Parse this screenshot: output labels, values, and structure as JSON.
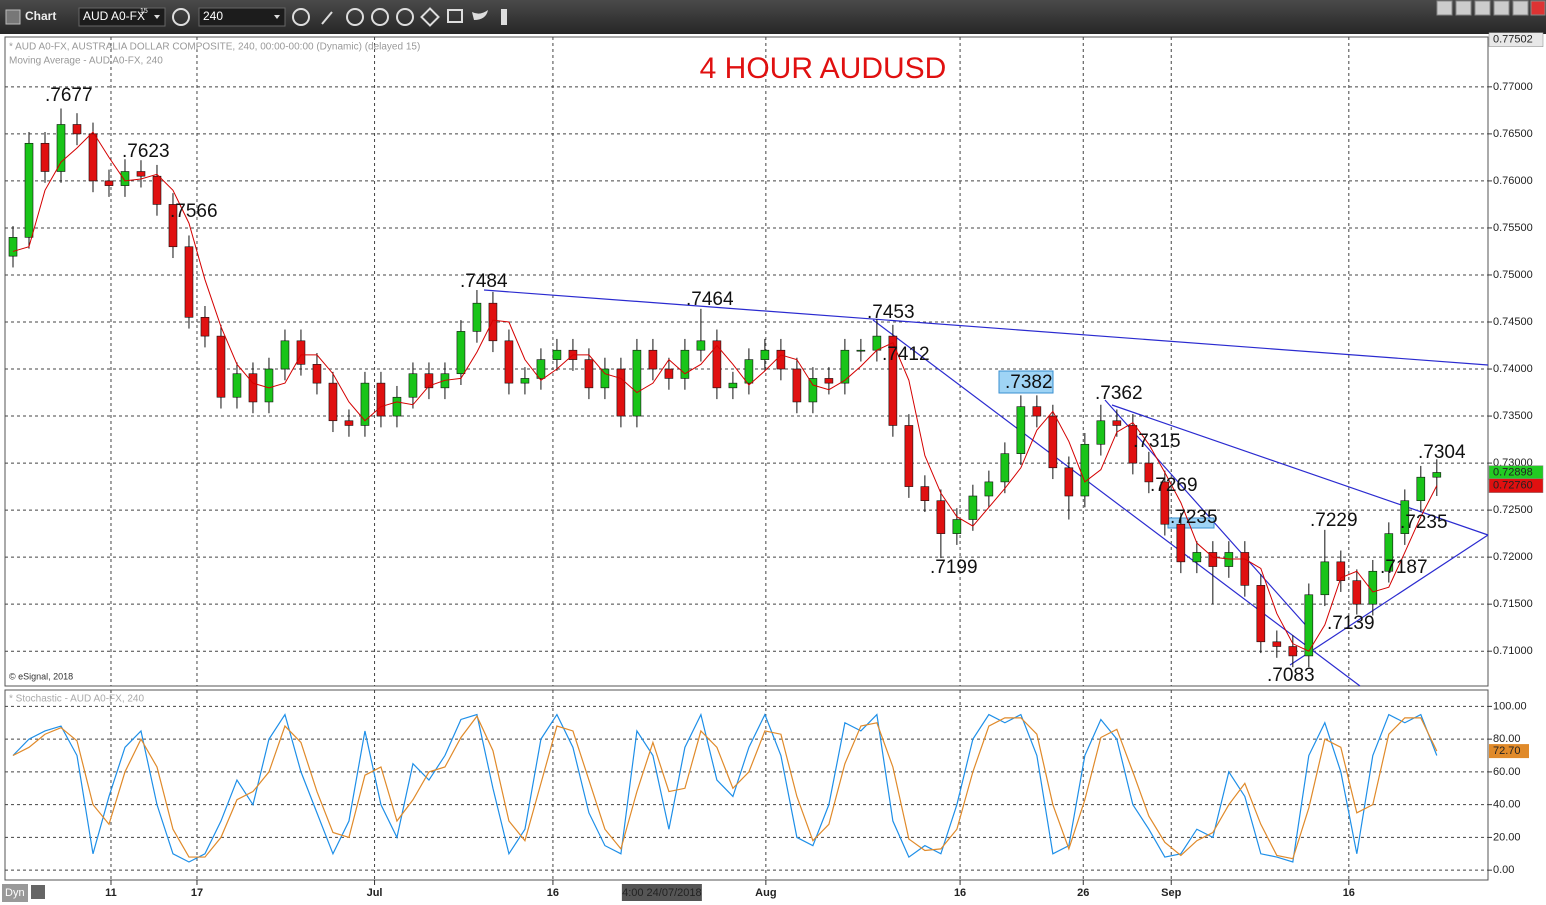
{
  "toolbar": {
    "title": "Chart",
    "symbol": "AUD A0-FX",
    "symbol_sup": "15",
    "interval": "240",
    "mode": "Dyn"
  },
  "chart_data": [
    {
      "type": "candlestick",
      "title": "4 HOUR AUDUSD",
      "subtitle": "* AUD A0-FX, AUSTRALIA DOLLAR COMPOSITE, 240, 00:00-00:00 (Dynamic) (delayed 15)",
      "indicator_label": "Moving Average - AUD A0-FX, 240",
      "source": "© eSignal, 2018",
      "up_color": "#19c419",
      "down_color": "#e01010",
      "open": [
        0.752,
        0.754,
        0.764,
        0.761,
        0.766,
        0.765,
        0.76,
        0.7595,
        0.761,
        0.7605,
        0.7575,
        0.753,
        0.7455,
        0.7435,
        0.737,
        0.7395,
        0.7365,
        0.74,
        0.743,
        0.7405,
        0.7385,
        0.7345,
        0.734,
        0.7385,
        0.735,
        0.737,
        0.7395,
        0.738,
        0.7395,
        0.744,
        0.747,
        0.743,
        0.7385,
        0.739,
        0.741,
        0.742,
        0.741,
        0.738,
        0.74,
        0.735,
        0.742,
        0.74,
        0.739,
        0.742,
        0.743,
        0.738,
        0.7385,
        0.741,
        0.742,
        0.74,
        0.7365,
        0.739,
        0.7385,
        0.742,
        0.742,
        0.7435,
        0.734,
        0.7275,
        0.726,
        0.7225,
        0.724,
        0.7265,
        0.728,
        0.731,
        0.736,
        0.735,
        0.7295,
        0.7265,
        0.732,
        0.7345,
        0.734,
        0.73,
        0.728,
        0.7235,
        0.7195,
        0.7205,
        0.719,
        0.7205,
        0.717,
        0.711,
        0.7105,
        0.7095,
        0.716,
        0.7195,
        0.7175,
        0.715,
        0.7185,
        0.7225,
        0.726,
        0.7285
      ],
      "high": [
        0.7552,
        0.7652,
        0.7652,
        0.7677,
        0.7672,
        0.7662,
        0.7612,
        0.7623,
        0.7622,
        0.7617,
        0.7587,
        0.7542,
        0.7467,
        0.7447,
        0.7407,
        0.7407,
        0.7412,
        0.7442,
        0.7442,
        0.7417,
        0.7397,
        0.7357,
        0.7397,
        0.7397,
        0.7382,
        0.7407,
        0.7407,
        0.7407,
        0.7452,
        0.7484,
        0.7482,
        0.7442,
        0.7402,
        0.7422,
        0.7432,
        0.7432,
        0.7422,
        0.7412,
        0.7412,
        0.7432,
        0.7432,
        0.7412,
        0.7432,
        0.7464,
        0.7442,
        0.7397,
        0.7422,
        0.7432,
        0.7432,
        0.7412,
        0.7402,
        0.7402,
        0.7432,
        0.7432,
        0.7453,
        0.7447,
        0.7352,
        0.7287,
        0.7272,
        0.7252,
        0.7277,
        0.7292,
        0.7322,
        0.7372,
        0.7372,
        0.7362,
        0.7307,
        0.7332,
        0.7362,
        0.7357,
        0.7352,
        0.7312,
        0.7292,
        0.7247,
        0.7217,
        0.7217,
        0.7217,
        0.7217,
        0.7182,
        0.7122,
        0.7117,
        0.7172,
        0.7229,
        0.7207,
        0.7187,
        0.7197,
        0.7237,
        0.7272,
        0.7297,
        0.7304
      ],
      "low": [
        0.7508,
        0.7528,
        0.7598,
        0.7598,
        0.7638,
        0.7588,
        0.7583,
        0.7583,
        0.7593,
        0.7563,
        0.7518,
        0.7443,
        0.7423,
        0.7358,
        0.7358,
        0.7353,
        0.7353,
        0.7388,
        0.7393,
        0.7373,
        0.7333,
        0.7328,
        0.7328,
        0.7338,
        0.7338,
        0.7358,
        0.7368,
        0.7368,
        0.7383,
        0.7428,
        0.7418,
        0.7373,
        0.7373,
        0.7378,
        0.7398,
        0.7398,
        0.7368,
        0.7368,
        0.7338,
        0.7338,
        0.7388,
        0.7378,
        0.7378,
        0.7408,
        0.7368,
        0.7368,
        0.7373,
        0.7398,
        0.7388,
        0.7353,
        0.7353,
        0.7373,
        0.7373,
        0.7408,
        0.7408,
        0.7328,
        0.7263,
        0.7248,
        0.7199,
        0.7213,
        0.7228,
        0.7253,
        0.7268,
        0.7298,
        0.7338,
        0.7283,
        0.724,
        0.7253,
        0.7308,
        0.7328,
        0.7288,
        0.7268,
        0.7223,
        0.7183,
        0.7183,
        0.715,
        0.7178,
        0.7158,
        0.7098,
        0.7093,
        0.7083,
        0.7083,
        0.7148,
        0.7163,
        0.7139,
        0.7138,
        0.7173,
        0.7213,
        0.7248,
        0.7265
      ],
      "close": [
        0.754,
        0.764,
        0.761,
        0.766,
        0.765,
        0.76,
        0.7595,
        0.761,
        0.7605,
        0.7575,
        0.753,
        0.7455,
        0.7435,
        0.737,
        0.7395,
        0.7365,
        0.74,
        0.743,
        0.7405,
        0.7385,
        0.7345,
        0.734,
        0.7385,
        0.735,
        0.737,
        0.7395,
        0.738,
        0.7395,
        0.744,
        0.747,
        0.743,
        0.7385,
        0.739,
        0.741,
        0.742,
        0.741,
        0.738,
        0.74,
        0.735,
        0.742,
        0.74,
        0.739,
        0.742,
        0.743,
        0.738,
        0.7385,
        0.741,
        0.742,
        0.74,
        0.7365,
        0.739,
        0.7385,
        0.742,
        0.742,
        0.7435,
        0.734,
        0.7275,
        0.726,
        0.7225,
        0.724,
        0.7265,
        0.728,
        0.731,
        0.736,
        0.735,
        0.7295,
        0.7265,
        0.732,
        0.7345,
        0.734,
        0.73,
        0.728,
        0.7235,
        0.7195,
        0.7205,
        0.719,
        0.7205,
        0.717,
        0.711,
        0.7105,
        0.7095,
        0.716,
        0.7195,
        0.7175,
        0.715,
        0.7185,
        0.7225,
        0.726,
        0.7285,
        0.729
      ],
      "ma": {
        "color": "#d40000",
        "values": [
          0.7525,
          0.753,
          0.759,
          0.762,
          0.7635,
          0.7652,
          0.7625,
          0.76,
          0.7602,
          0.7607,
          0.759,
          0.7555,
          0.7495,
          0.7445,
          0.7405,
          0.7385,
          0.738,
          0.7385,
          0.7415,
          0.7415,
          0.7395,
          0.7365,
          0.7345,
          0.736,
          0.7365,
          0.7362,
          0.7382,
          0.7388,
          0.739,
          0.7418,
          0.7452,
          0.745,
          0.741,
          0.7388,
          0.74,
          0.7415,
          0.7415,
          0.7395,
          0.739,
          0.7375,
          0.7385,
          0.741,
          0.7395,
          0.7405,
          0.7425,
          0.7405,
          0.7383,
          0.7398,
          0.7415,
          0.741,
          0.7383,
          0.7378,
          0.7388,
          0.7403,
          0.742,
          0.7428,
          0.7388,
          0.7308,
          0.7268,
          0.7243,
          0.7233,
          0.7253,
          0.7273,
          0.7295,
          0.7335,
          0.7355,
          0.7323,
          0.728,
          0.7293,
          0.7333,
          0.7343,
          0.732,
          0.729,
          0.7258,
          0.7215,
          0.72,
          0.7198,
          0.7198,
          0.7188,
          0.714,
          0.7108,
          0.71,
          0.7128,
          0.7178,
          0.7185,
          0.7163,
          0.7168,
          0.7205,
          0.7243,
          0.7276
        ]
      },
      "xlim": [
        -0.5,
        92.2
      ],
      "ylim": [
        0.7063,
        0.7753
      ],
      "yticks": [
        {
          "value": 0.71,
          "label": "0.71000"
        },
        {
          "value": 0.715,
          "label": "0.71500"
        },
        {
          "value": 0.72,
          "label": "0.72000"
        },
        {
          "value": 0.725,
          "label": "0.72500"
        },
        {
          "value": 0.73,
          "label": "0.73000"
        },
        {
          "value": 0.735,
          "label": "0.73500"
        },
        {
          "value": 0.74,
          "label": "0.74000"
        },
        {
          "value": 0.745,
          "label": "0.74500"
        },
        {
          "value": 0.75,
          "label": "0.75000"
        },
        {
          "value": 0.755,
          "label": "0.75500"
        },
        {
          "value": 0.76,
          "label": "0.76000"
        },
        {
          "value": 0.765,
          "label": "0.76500"
        },
        {
          "value": 0.77,
          "label": "0.77000"
        }
      ],
      "xticks": [
        {
          "value": 6.125,
          "label": "11"
        },
        {
          "value": 11.5,
          "label": "17"
        },
        {
          "value": 22.6,
          "label": "Jul"
        },
        {
          "value": 33.75,
          "label": "16"
        },
        {
          "value": 47.06,
          "label": "Aug"
        },
        {
          "value": 59.2,
          "label": "16"
        },
        {
          "value": 66.9,
          "label": "26"
        },
        {
          "value": 72.4,
          "label": "Sep"
        },
        {
          "value": 83.5,
          "label": "16"
        }
      ],
      "crosshair_label": {
        "value": 40.56,
        "label": "4:00 24/07/2018"
      },
      "grid": true,
      "price_labels": [
        {
          "value": 0.77502,
          "label": "0.77502",
          "color": "#e8e8e8"
        },
        {
          "value": 0.72898,
          "label": "0.72898",
          "color": "#22cc22"
        },
        {
          "value": 0.7276,
          "label": "0.72760",
          "color": "#e01010"
        }
      ],
      "annotations": [
        ".7677",
        ".7623",
        ".7566",
        ".7484",
        ".7464",
        ".7453",
        ".7412",
        ".7382",
        ".7362",
        ".7315",
        ".7269",
        ".7235",
        ".7199",
        ".7229",
        ".7235",
        ".7187",
        ".7139",
        ".7083",
        ".7304"
      ]
    },
    {
      "type": "line",
      "title": "* Stochastic - AUD A0-FX, 240",
      "series": [
        {
          "color": "#1e8fe8",
          "values": [
            70,
            80,
            85,
            88,
            70,
            10,
            45,
            75,
            85,
            40,
            10,
            5,
            10,
            30,
            55,
            40,
            80,
            95,
            60,
            35,
            10,
            30,
            85,
            40,
            20,
            65,
            55,
            70,
            92,
            95,
            50,
            10,
            25,
            80,
            95,
            75,
            35,
            15,
            10,
            85,
            70,
            25,
            75,
            95,
            55,
            45,
            75,
            95,
            70,
            20,
            15,
            40,
            90,
            85,
            95,
            30,
            8,
            15,
            10,
            40,
            80,
            95,
            90,
            95,
            70,
            10,
            15,
            70,
            92,
            80,
            40,
            25,
            8,
            10,
            25,
            20,
            60,
            45,
            10,
            8,
            5,
            70,
            90,
            60,
            10,
            70,
            95,
            90,
            95,
            70
          ]
        },
        {
          "color": "#e08a2a",
          "values": [
            70,
            75,
            83,
            87,
            79,
            40,
            28,
            60,
            80,
            63,
            25,
            8,
            8,
            20,
            43,
            48,
            60,
            88,
            78,
            48,
            23,
            20,
            58,
            63,
            30,
            43,
            60,
            63,
            81,
            94,
            73,
            30,
            18,
            53,
            88,
            85,
            55,
            25,
            13,
            48,
            78,
            48,
            50,
            85,
            75,
            50,
            60,
            85,
            83,
            45,
            18,
            28,
            65,
            88,
            90,
            63,
            19,
            12,
            13,
            25,
            60,
            88,
            93,
            93,
            83,
            40,
            13,
            43,
            81,
            86,
            60,
            33,
            17,
            9,
            18,
            23,
            40,
            53,
            28,
            9,
            7,
            38,
            80,
            75,
            35,
            40,
            83,
            93,
            93,
            72.7
          ]
        }
      ],
      "ylim": [
        -6,
        110
      ],
      "yticks": [
        {
          "value": 0,
          "label": "0.00"
        },
        {
          "value": 20,
          "label": "20.00"
        },
        {
          "value": 40,
          "label": "40.00"
        },
        {
          "value": 60,
          "label": "60.00"
        },
        {
          "value": 80,
          "label": "80.00"
        },
        {
          "value": 100,
          "label": "100.00"
        }
      ],
      "value_label": {
        "value": 72.7,
        "label": "72.70",
        "color": "#e08a2a"
      },
      "grid": true
    }
  ]
}
